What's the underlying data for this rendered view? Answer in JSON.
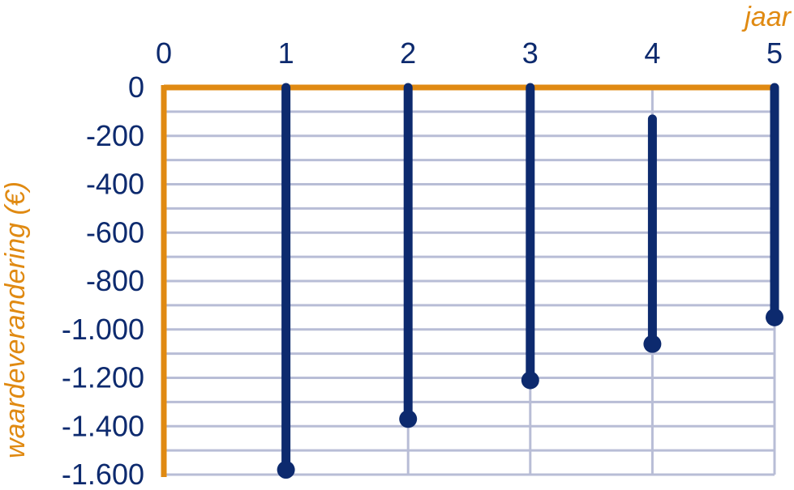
{
  "chart_data": {
    "type": "stem",
    "xlabel": "jaar",
    "ylabel": "waardeverandering (€)",
    "xlim": [
      0,
      5
    ],
    "ylim": [
      -1600,
      0
    ],
    "x_ticks": [
      0,
      1,
      2,
      3,
      4,
      5
    ],
    "x_tick_labels": [
      "0",
      "1",
      "2",
      "3",
      "4",
      "5"
    ],
    "y_ticks": [
      0,
      -200,
      -400,
      -600,
      -800,
      -1000,
      -1200,
      -1400,
      -1600
    ],
    "y_tick_labels": [
      "0",
      "-200",
      "-400",
      "-600",
      "-800",
      "-1.000",
      "-1.200",
      "-1.400",
      "-1.600"
    ],
    "x_axis_position": "top",
    "grid": true,
    "series": [
      {
        "points": [
          {
            "x": 1,
            "y_start": 0,
            "y_end": -1580
          },
          {
            "x": 2,
            "y_start": 0,
            "y_end": -1370
          },
          {
            "x": 3,
            "y_start": 0,
            "y_end": -1210
          },
          {
            "x": 4,
            "y_start": -130,
            "y_end": -1060
          },
          {
            "x": 5,
            "y_start": 0,
            "y_end": -950
          }
        ]
      }
    ],
    "colors": {
      "axis": "#e08a12",
      "grid": "#b8bdd6",
      "stem": "#0d2a6e",
      "tick_text": "#0d2a6e",
      "title_text": "#e08a12"
    }
  }
}
